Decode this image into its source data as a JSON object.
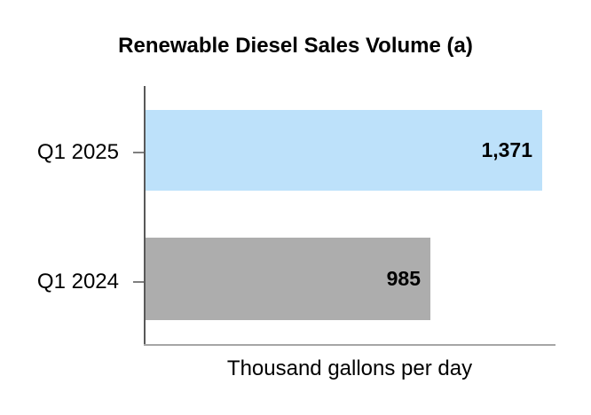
{
  "title": "Renewable Diesel Sales Volume (a)",
  "chart_data": {
    "type": "bar",
    "orientation": "horizontal",
    "title": "Renewable Diesel Sales Volume (a)",
    "categories": [
      "Q1 2025",
      "Q1 2024"
    ],
    "values": [
      1371,
      985
    ],
    "value_labels": [
      "1,371",
      "985"
    ],
    "xlabel": "Thousand gallons per day",
    "ylabel": "",
    "xlim": [
      0,
      1417
    ],
    "grid": false,
    "legend": false,
    "bar_colors": [
      "#BDE1FA",
      "#ADADAD"
    ],
    "axis_color": "#595959",
    "baseline_color": "#A6A6A6",
    "tick_color": "#7F7F7F"
  }
}
